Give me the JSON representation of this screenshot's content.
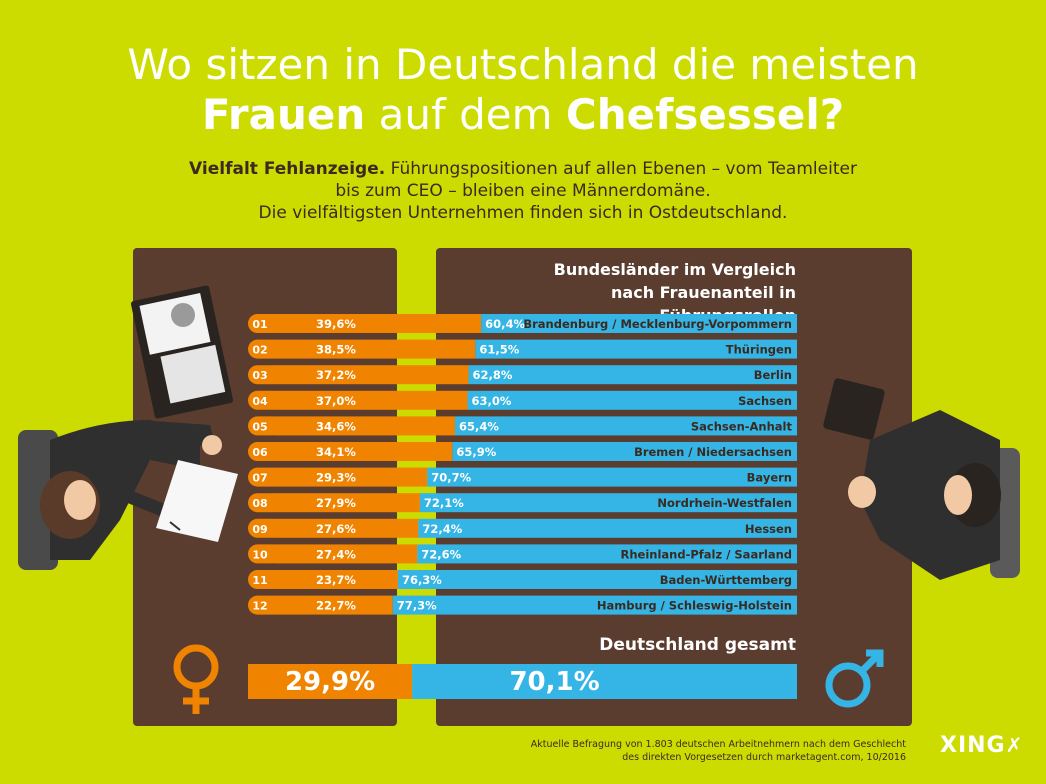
{
  "header": {
    "title_line1": "Wo sitzen in Deutschland die meisten",
    "title_bold1": "Frauen",
    "title_mid": " auf dem ",
    "title_bold2": "Chefsessel?",
    "subtitle_bold": "Vielfalt Fehlanzeige.",
    "subtitle_rest1": " Führungspositionen auf allen Ebenen – vom Teamleiter",
    "subtitle_line2": "bis zum CEO – bleiben eine Männerdomäne.",
    "subtitle_line3": "Die vielfältigsten Unternehmen finden sich in Ostdeutschland."
  },
  "chart_data": {
    "type": "bar",
    "title_line1": "Bundesländer im Vergleich",
    "title_line2": "nach Frauenanteil in Führungsrollen",
    "ranks": [
      "01",
      "02",
      "03",
      "04",
      "05",
      "06",
      "07",
      "08",
      "09",
      "10",
      "11",
      "12"
    ],
    "categories": [
      "Brandenburg / Mecklenburg-Vorpommern",
      "Thüringen",
      "Berlin",
      "Sachsen",
      "Sachsen-Anhalt",
      "Bremen / Niedersachsen",
      "Bayern",
      "Nordrhein-Westfalen",
      "Hessen",
      "Rheinland-Pfalz / Saarland",
      "Baden-Württemberg",
      "Hamburg / Schleswig-Holstein"
    ],
    "series": [
      {
        "values": [
          39.6,
          38.5,
          37.2,
          37.0,
          34.6,
          34.1,
          29.3,
          27.9,
          27.6,
          27.4,
          23.7,
          22.7
        ],
        "labels": [
          "39,6%",
          "38,5%",
          "37,2%",
          "37,0%",
          "34,6%",
          "34,1%",
          "29,3%",
          "27,9%",
          "27,6%",
          "27,4%",
          "23,7%",
          "22,7%"
        ]
      },
      {
        "values": [
          60.4,
          61.5,
          62.8,
          63.0,
          65.4,
          65.9,
          70.7,
          72.1,
          72.4,
          72.6,
          76.3,
          77.3
        ],
        "labels": [
          "60,4%",
          "61,5%",
          "62,8%",
          "63,0%",
          "65,4%",
          "65,9%",
          "70,7%",
          "72,1%",
          "72,4%",
          "72,6%",
          "76,3%",
          "77,3%"
        ]
      }
    ],
    "total": {
      "label": "Deutschland gesamt",
      "female": 29.9,
      "female_label": "29,9%",
      "male": 70.1,
      "male_label": "70,1%"
    },
    "colors": {
      "female": "#f08400",
      "male": "#35b5e5",
      "badge": "#f08400"
    }
  },
  "footer": {
    "note_line1": "Aktuelle Befragung von 1.803 deutschen Arbeitnehmern nach dem Geschlecht",
    "note_line2": "des direkten Vorgesetzen durch marketagent.com, 10/2016",
    "logo": "XING"
  },
  "icons": [
    "female-symbol-icon",
    "male-symbol-icon",
    "xing-logo-icon"
  ]
}
